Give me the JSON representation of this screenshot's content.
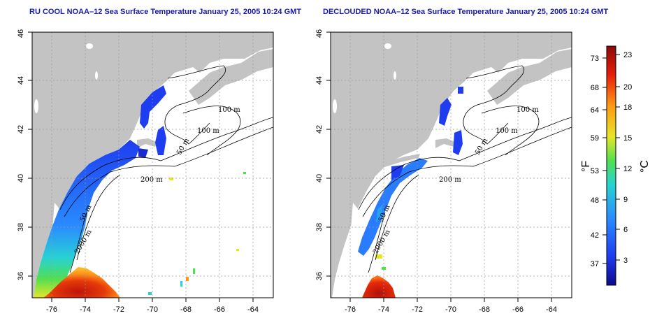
{
  "maps": [
    {
      "id": "left",
      "title": "RU COOL NOAA–12 Sea Surface Temperature January 25, 2005 10:24 GMT",
      "x_ticks": [
        "-76",
        "-74",
        "-72",
        "-70",
        "-68",
        "-66",
        "-64"
      ],
      "y_ticks": [
        "36",
        "38",
        "40",
        "42",
        "44",
        "46"
      ],
      "contour_labels": [
        "100 m",
        "100 m",
        "50 m",
        "200 m",
        "50 m",
        "2000 m"
      ]
    },
    {
      "id": "right",
      "title": "DECLOUDED NOAA–12 Sea Surface Temperature January 25, 2005 10:24 GMT",
      "x_ticks": [
        "-76",
        "-74",
        "-72",
        "-70",
        "-68",
        "-66",
        "-64"
      ],
      "y_ticks": [
        "36",
        "38",
        "40",
        "42",
        "44",
        "46"
      ],
      "contour_labels": [
        "100 m",
        "100 m",
        "50 m",
        "200 m",
        "50 m",
        "2000 m"
      ]
    }
  ],
  "colorbar": {
    "fahrenheit_ticks": [
      "73",
      "68",
      "64",
      "59",
      "53",
      "48",
      "42",
      "37"
    ],
    "celsius_ticks": [
      "23",
      "20",
      "18",
      "15",
      "12",
      "9",
      "6",
      "3"
    ],
    "fahrenheit_unit": "°F",
    "celsius_unit": "°C",
    "colors": [
      "#0a0a8c",
      "#1e3cf0",
      "#2a8cff",
      "#28d2d2",
      "#50e050",
      "#e6e628",
      "#ff9a14",
      "#e61e0a",
      "#8c0a0a"
    ]
  },
  "colors": {
    "land": "#c3c3c3",
    "ocean": "#ffffff",
    "title": "#1a1aa8",
    "grid": "#999999"
  }
}
